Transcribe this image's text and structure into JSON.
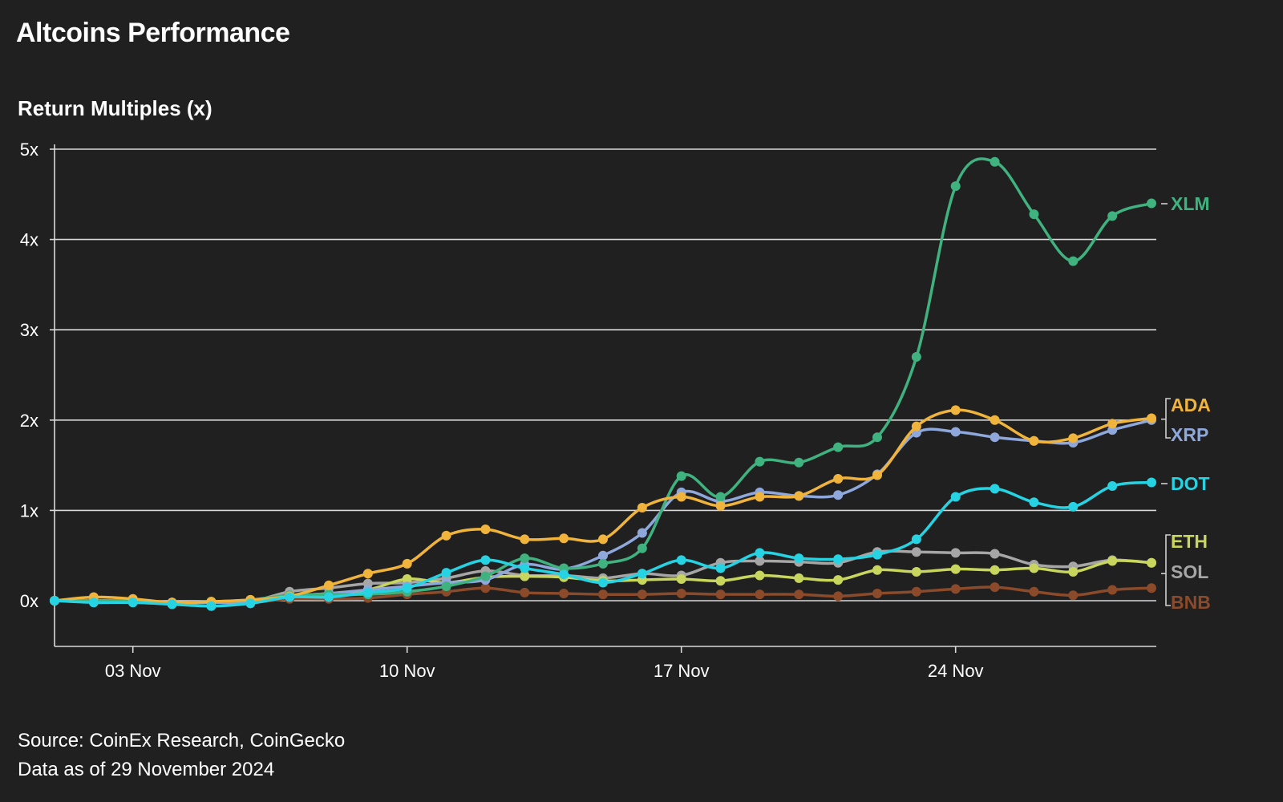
{
  "header": {
    "title": "Altcoins Performance",
    "subtitle": "Return Multiples (x)"
  },
  "footer": {
    "source": "Source: CoinEx Research, CoinGecko",
    "as_of": "Data as of 29 November 2024"
  },
  "chart_data": {
    "type": "line",
    "title": "Altcoins Performance",
    "ylabel": "Return Multiples (x)",
    "xlabel": "",
    "ylim": [
      -0.5,
      5
    ],
    "yticks": [
      0,
      1,
      2,
      3,
      4,
      5
    ],
    "ytick_labels": [
      "0x",
      "1x",
      "2x",
      "3x",
      "4x",
      "5x"
    ],
    "xlim": [
      "2024-11-01",
      "2024-11-29"
    ],
    "xticks": [
      "2024-11-03",
      "2024-11-10",
      "2024-11-17",
      "2024-11-24"
    ],
    "xtick_labels": [
      "03 Nov",
      "10 Nov",
      "17 Nov",
      "24 Nov"
    ],
    "grid": "horizontal",
    "legend": "direct labels at right end of lines",
    "x": [
      "2024-11-01",
      "2024-11-02",
      "2024-11-03",
      "2024-11-04",
      "2024-11-05",
      "2024-11-06",
      "2024-11-07",
      "2024-11-08",
      "2024-11-09",
      "2024-11-10",
      "2024-11-11",
      "2024-11-12",
      "2024-11-13",
      "2024-11-14",
      "2024-11-15",
      "2024-11-16",
      "2024-11-17",
      "2024-11-18",
      "2024-11-19",
      "2024-11-20",
      "2024-11-21",
      "2024-11-22",
      "2024-11-23",
      "2024-11-24",
      "2024-11-25",
      "2024-11-26",
      "2024-11-27",
      "2024-11-28",
      "2024-11-29"
    ],
    "series": [
      {
        "name": "BNB",
        "color": "#8b4a2a",
        "values": [
          0,
          0,
          0,
          -0.02,
          -0.02,
          -0.02,
          0.02,
          0.02,
          0.03,
          0.07,
          0.1,
          0.14,
          0.09,
          0.08,
          0.07,
          0.07,
          0.08,
          0.07,
          0.07,
          0.07,
          0.05,
          0.08,
          0.1,
          0.13,
          0.15,
          0.1,
          0.06,
          0.12,
          0.14
        ]
      },
      {
        "name": "SOL",
        "color": "#a6a6a6",
        "values": [
          0,
          0,
          0,
          -0.02,
          -0.02,
          -0.01,
          0.1,
          0.14,
          0.19,
          0.2,
          0.25,
          0.33,
          0.28,
          0.28,
          0.25,
          0.3,
          0.28,
          0.42,
          0.44,
          0.43,
          0.42,
          0.54,
          0.54,
          0.53,
          0.52,
          0.4,
          0.38,
          0.45,
          0.42
        ]
      },
      {
        "name": "ETH",
        "color": "#c8d65e",
        "values": [
          0,
          0,
          0,
          -0.02,
          -0.02,
          -0.01,
          0.05,
          0.08,
          0.12,
          0.24,
          0.2,
          0.26,
          0.27,
          0.26,
          0.22,
          0.23,
          0.24,
          0.22,
          0.28,
          0.25,
          0.23,
          0.34,
          0.32,
          0.35,
          0.34,
          0.36,
          0.32,
          0.44,
          0.42
        ]
      },
      {
        "name": "XRP",
        "color": "#8fa8dc",
        "values": [
          0,
          0,
          0,
          -0.02,
          -0.02,
          -0.01,
          0.05,
          0.08,
          0.12,
          0.16,
          0.2,
          0.23,
          0.4,
          0.35,
          0.5,
          0.75,
          1.2,
          1.1,
          1.2,
          1.16,
          1.17,
          1.4,
          1.86,
          1.87,
          1.81,
          1.77,
          1.75,
          1.89,
          2.0
        ]
      },
      {
        "name": "XLM",
        "color": "#3fb27f",
        "values": [
          0,
          0,
          0,
          -0.02,
          -0.01,
          0.01,
          0.06,
          0.07,
          0.07,
          0.1,
          0.16,
          0.27,
          0.47,
          0.36,
          0.41,
          0.58,
          1.38,
          1.15,
          1.54,
          1.53,
          1.7,
          1.81,
          2.7,
          4.59,
          4.86,
          4.28,
          3.76,
          4.26,
          4.4
        ]
      },
      {
        "name": "ADA",
        "color": "#f0b43c",
        "values": [
          0,
          0.04,
          0.02,
          -0.02,
          -0.01,
          0.01,
          0.05,
          0.17,
          0.3,
          0.41,
          0.72,
          0.79,
          0.68,
          0.69,
          0.68,
          1.03,
          1.15,
          1.05,
          1.15,
          1.16,
          1.35,
          1.39,
          1.93,
          2.11,
          2.0,
          1.77,
          1.8,
          1.96,
          2.02
        ]
      },
      {
        "name": "DOT",
        "color": "#26d3e3",
        "values": [
          0,
          -0.02,
          -0.02,
          -0.04,
          -0.06,
          -0.03,
          0.04,
          0.04,
          0.09,
          0.14,
          0.31,
          0.45,
          0.36,
          0.29,
          0.2,
          0.3,
          0.45,
          0.36,
          0.53,
          0.47,
          0.46,
          0.51,
          0.68,
          1.15,
          1.24,
          1.09,
          1.04,
          1.27,
          1.31
        ]
      }
    ]
  }
}
